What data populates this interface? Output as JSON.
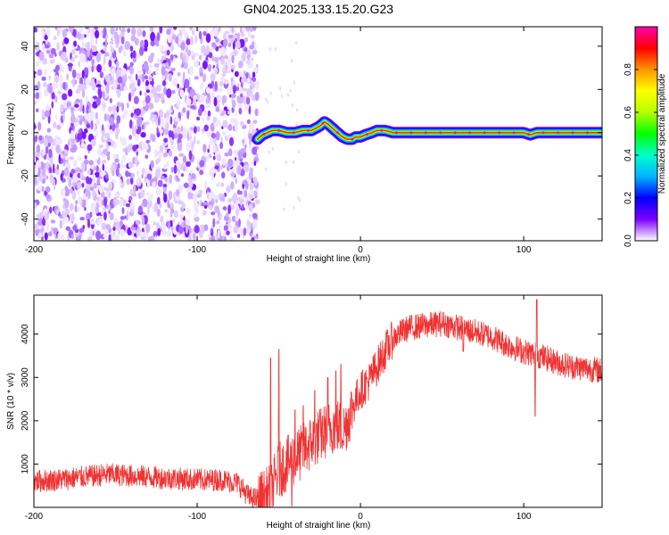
{
  "title": "GN04.2025.133.15.20.G23",
  "chart_data": [
    {
      "type": "heatmap",
      "xlabel": "Height of straight line (km)",
      "ylabel": "Frequency (Hz)",
      "xlim": [
        -200,
        148
      ],
      "ylim": [
        -50,
        49
      ],
      "x_ticks": [
        -200,
        -100,
        0,
        100
      ],
      "y_ticks": [
        -40,
        -20,
        0,
        20,
        40
      ],
      "noise_region_x": [
        -200,
        -63
      ],
      "signal_track": {
        "x": [
          -63,
          -60,
          -57,
          -54,
          -50,
          -45,
          -40,
          -35,
          -30,
          -25,
          -22,
          -20,
          -17,
          -14,
          -11,
          -8,
          -5,
          -3,
          0,
          3,
          7,
          10,
          15,
          20,
          40,
          60,
          80,
          100,
          104,
          108,
          120,
          135,
          148
        ],
        "y": [
          -3,
          -1,
          0,
          1,
          1,
          0,
          0,
          1,
          1,
          3,
          5,
          4,
          2,
          0,
          -2,
          -3,
          -3,
          -2,
          -2,
          -1,
          0,
          1,
          1,
          0,
          0,
          0,
          0,
          0,
          -1,
          0,
          0,
          0,
          0
        ]
      },
      "colorbar": {
        "label": "Normalized spectral amplitude",
        "range": [
          0,
          1
        ],
        "ticks": [
          0.0,
          0.2,
          0.4,
          0.6,
          0.8
        ],
        "colormap": "rainbow",
        "stops": [
          "#ffffff",
          "#7d00ff",
          "#0000ff",
          "#00b4ff",
          "#00ffcc",
          "#00ff00",
          "#b4ff00",
          "#ffff00",
          "#ff9600",
          "#ff0000",
          "#ff00aa"
        ]
      }
    },
    {
      "type": "line",
      "xlabel": "Height of straight line (km)",
      "ylabel": "SNR (10 * v/v)",
      "xlim": [
        -200,
        148
      ],
      "ylim": [
        0,
        4900
      ],
      "x_ticks": [
        -200,
        -100,
        0,
        100
      ],
      "y_ticks": [
        1000,
        2000,
        3000,
        4000
      ],
      "color": "#f03232",
      "trend": {
        "x": [
          -200,
          -185,
          -170,
          -155,
          -140,
          -125,
          -110,
          -95,
          -85,
          -75,
          -68,
          -62,
          -55,
          -50,
          -45,
          -40,
          -35,
          -30,
          -25,
          -20,
          -15,
          -10,
          -5,
          0,
          5,
          10,
          15,
          20,
          25,
          30,
          40,
          50,
          60,
          70,
          80,
          90,
          100,
          110,
          120,
          130,
          140,
          148
        ],
        "y": [
          600,
          640,
          700,
          760,
          730,
          690,
          660,
          630,
          640,
          560,
          230,
          180,
          350,
          850,
          1000,
          1150,
          1300,
          1500,
          1650,
          1800,
          1900,
          1800,
          2300,
          2700,
          2900,
          3250,
          3600,
          3900,
          4050,
          4150,
          4200,
          4250,
          4150,
          4050,
          3950,
          3750,
          3600,
          3500,
          3350,
          3250,
          3200,
          3150
        ]
      },
      "spikes": [
        {
          "x": -50,
          "y": 3650
        },
        {
          "x": -55,
          "y": 3450
        },
        {
          "x": -40,
          "y": 2250
        },
        {
          "x": -35,
          "y": 2350
        },
        {
          "x": -28,
          "y": 2700
        },
        {
          "x": -20,
          "y": 3000
        },
        {
          "x": -15,
          "y": 3150
        },
        {
          "x": -12,
          "y": 3300
        },
        {
          "x": -42,
          "y": 30
        },
        {
          "x": 108,
          "y": 4800
        },
        {
          "x": 107,
          "y": 2100
        },
        {
          "x": 63,
          "y": 3600
        }
      ]
    }
  ]
}
